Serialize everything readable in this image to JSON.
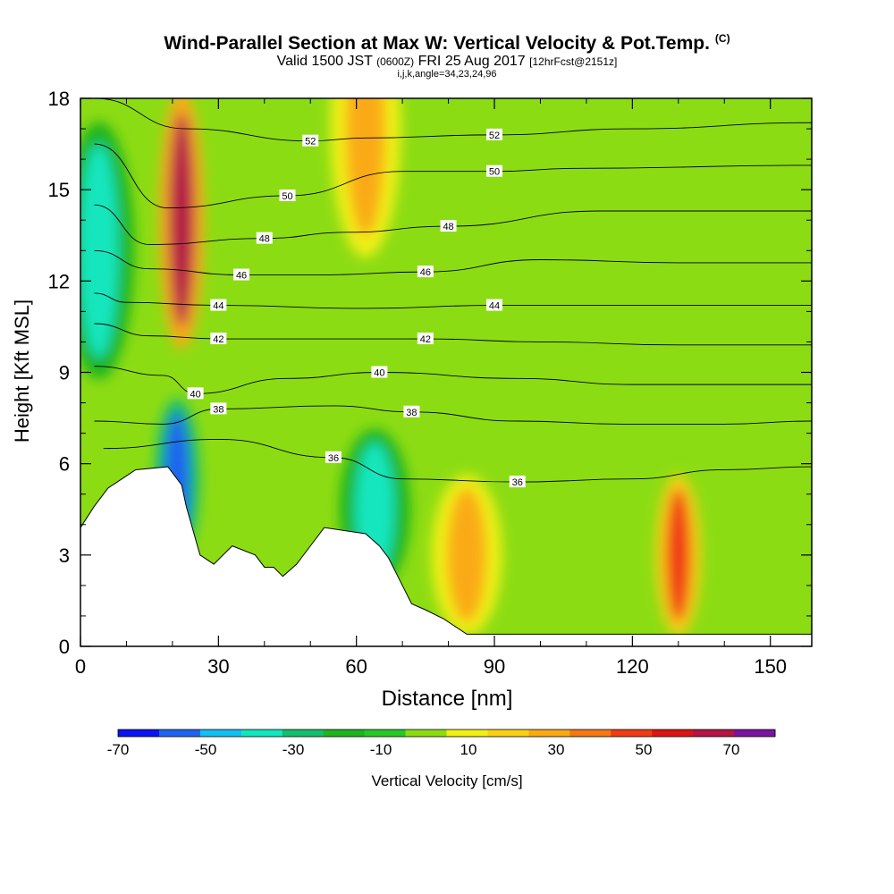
{
  "header": {
    "title": "Wind-Parallel Section at Max W: Vertical Velocity & Pot.Temp.",
    "copyright": "(C)",
    "sub_a": "Valid 1500 JST",
    "sub_b": "(0600Z)",
    "sub_c": "FRI 25 Aug 2017",
    "sub_d": "[12hrFcst@2151z]",
    "params": "i,j,k,angle=34,23,24,96"
  },
  "chart_data": {
    "type": "heatmap",
    "xlabel": "Distance [nm]",
    "ylabel": "Height [Kft MSL]",
    "xlim": [
      0,
      159
    ],
    "ylim": [
      0,
      18
    ],
    "x_ticks": [
      0,
      30,
      60,
      90,
      120,
      150
    ],
    "y_ticks": [
      0,
      3,
      6,
      9,
      12,
      15,
      18
    ],
    "colorbar": {
      "title": "Vertical Velocity [cm/s]",
      "tick_labels": [
        -70,
        -50,
        -30,
        -10,
        10,
        30,
        50,
        70
      ],
      "levels": [
        -70,
        -60,
        -50,
        -40,
        -30,
        -20,
        -10,
        0,
        10,
        20,
        30,
        40,
        50,
        60,
        70,
        80
      ],
      "colors": [
        "#0a14f0",
        "#1e64f0",
        "#14bef0",
        "#14e6be",
        "#14be6e",
        "#1eb41e",
        "#28c828",
        "#8cdc14",
        "#f0f014",
        "#fad214",
        "#faaa14",
        "#f57814",
        "#f03c14",
        "#dc1414",
        "#b41446",
        "#7814a0"
      ]
    },
    "theta_contour_labels": [
      "36",
      "38",
      "40",
      "42",
      "44",
      "46",
      "48",
      "50",
      "52"
    ],
    "theta_contours": [
      {
        "label": "36",
        "points": [
          [
            5,
            6.5
          ],
          [
            30,
            6.8
          ],
          [
            55,
            6.2
          ],
          [
            70,
            5.5
          ],
          [
            95,
            5.4
          ],
          [
            120,
            5.5
          ],
          [
            140,
            5.8
          ],
          [
            159,
            5.9
          ]
        ]
      },
      {
        "label": "38",
        "points": [
          [
            3,
            7.4
          ],
          [
            18,
            7.3
          ],
          [
            30,
            7.8
          ],
          [
            55,
            7.9
          ],
          [
            72,
            7.7
          ],
          [
            95,
            7.4
          ],
          [
            118,
            7.3
          ],
          [
            140,
            7.3
          ],
          [
            159,
            7.4
          ]
        ]
      },
      {
        "label": "40",
        "points": [
          [
            3,
            9.2
          ],
          [
            18,
            8.9
          ],
          [
            25,
            8.3
          ],
          [
            45,
            8.8
          ],
          [
            65,
            9.0
          ],
          [
            95,
            8.8
          ],
          [
            120,
            8.6
          ],
          [
            159,
            8.6
          ]
        ]
      },
      {
        "label": "42",
        "points": [
          [
            3,
            10.6
          ],
          [
            15,
            10.2
          ],
          [
            30,
            10.1
          ],
          [
            52,
            10.1
          ],
          [
            75,
            10.1
          ],
          [
            100,
            10.0
          ],
          [
            130,
            9.9
          ],
          [
            159,
            9.9
          ]
        ]
      },
      {
        "label": "44",
        "points": [
          [
            3,
            11.6
          ],
          [
            10,
            11.3
          ],
          [
            30,
            11.2
          ],
          [
            62,
            11.1
          ],
          [
            90,
            11.2
          ],
          [
            117,
            11.2
          ],
          [
            159,
            11.2
          ]
        ]
      },
      {
        "label": "46",
        "points": [
          [
            3,
            13.0
          ],
          [
            15,
            12.4
          ],
          [
            35,
            12.2
          ],
          [
            52,
            12.2
          ],
          [
            75,
            12.3
          ],
          [
            100,
            12.7
          ],
          [
            130,
            12.6
          ],
          [
            159,
            12.6
          ]
        ]
      },
      {
        "label": "48",
        "points": [
          [
            3,
            14.5
          ],
          [
            15,
            13.2
          ],
          [
            40,
            13.4
          ],
          [
            58,
            13.6
          ],
          [
            80,
            13.8
          ],
          [
            113,
            14.3
          ],
          [
            159,
            14.3
          ]
        ]
      },
      {
        "label": "50",
        "points": [
          [
            3,
            16.5
          ],
          [
            19,
            14.4
          ],
          [
            45,
            14.8
          ],
          [
            70,
            15.6
          ],
          [
            90,
            15.6
          ],
          [
            108,
            15.7
          ],
          [
            159,
            15.8
          ]
        ]
      },
      {
        "label": "52",
        "points": [
          [
            3,
            18.0
          ],
          [
            23,
            17.0
          ],
          [
            50,
            16.6
          ],
          [
            62,
            16.7
          ],
          [
            90,
            16.8
          ],
          [
            120,
            17.0
          ],
          [
            159,
            17.2
          ]
        ]
      }
    ],
    "terrain_heights": [
      [
        0,
        3.9
      ],
      [
        3,
        4.6
      ],
      [
        6,
        5.2
      ],
      [
        9,
        5.5
      ],
      [
        12,
        5.8
      ],
      [
        19,
        5.9
      ],
      [
        22,
        5.3
      ],
      [
        23,
        4.6
      ],
      [
        26,
        3.0
      ],
      [
        29,
        2.7
      ],
      [
        33,
        3.3
      ],
      [
        38,
        3.0
      ],
      [
        40,
        2.6
      ],
      [
        42,
        2.6
      ],
      [
        44,
        2.3
      ],
      [
        47,
        2.7
      ],
      [
        50,
        3.3
      ],
      [
        53,
        3.9
      ],
      [
        62,
        3.7
      ],
      [
        65,
        3.3
      ],
      [
        67,
        2.9
      ],
      [
        69,
        2.3
      ],
      [
        72,
        1.4
      ],
      [
        75,
        1.2
      ],
      [
        79,
        0.9
      ],
      [
        84,
        0.4
      ],
      [
        87,
        0.4
      ],
      [
        159,
        0.4
      ]
    ],
    "velocity_features": [
      {
        "x": 22,
        "y": 14,
        "value": 70
      },
      {
        "x": 21,
        "y": 5.5,
        "value": -60
      },
      {
        "x": 4,
        "y": 13,
        "value": -40
      },
      {
        "x": 64,
        "y": 4.5,
        "value": -35
      },
      {
        "x": 84,
        "y": 3,
        "value": 35
      },
      {
        "x": 130,
        "y": 3,
        "value": 55
      },
      {
        "x": 62,
        "y": 17,
        "value": 30
      }
    ]
  }
}
